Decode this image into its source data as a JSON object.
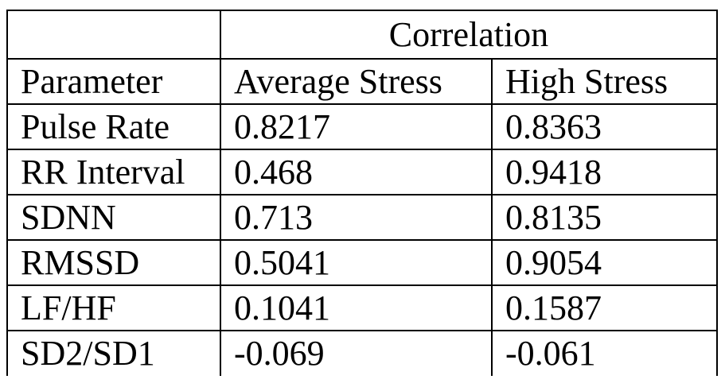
{
  "table": {
    "group_header": "Correlation",
    "columns": [
      "Parameter",
      "Average Stress",
      "High Stress"
    ],
    "rows": [
      [
        "Pulse Rate",
        "0.8217",
        "0.8363"
      ],
      [
        "RR Interval",
        "0.468",
        "0.9418"
      ],
      [
        "SDNN",
        "0.713",
        "0.8135"
      ],
      [
        "RMSSD",
        "0.5041",
        "0.9054"
      ],
      [
        "LF/HF",
        "0.1041",
        "0.1587"
      ],
      [
        "SD2/SD1",
        "-0.069",
        "-0.061"
      ]
    ]
  }
}
